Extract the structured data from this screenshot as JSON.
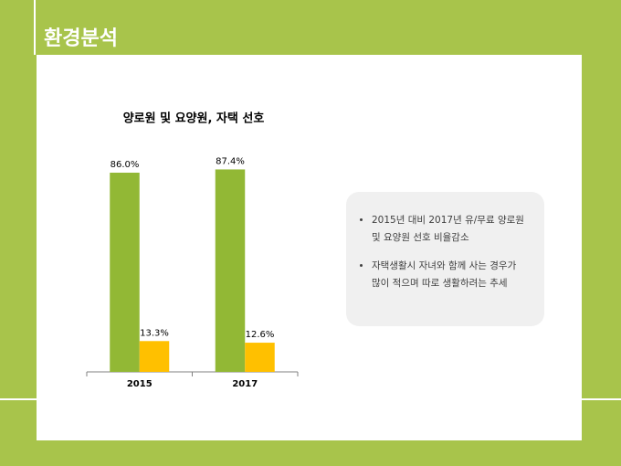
{
  "header": {
    "title": "환경분석"
  },
  "chart_data": {
    "type": "bar",
    "title": "양로원 및 요양원, 자택 선호",
    "categories": [
      "2015",
      "2017"
    ],
    "series": [
      {
        "color": "#92b835",
        "values": [
          86.0,
          87.4
        ],
        "value_labels": [
          "86.0%",
          "87.4%"
        ]
      },
      {
        "color": "#ffc000",
        "values": [
          13.3,
          12.6
        ],
        "value_labels": [
          "13.3%",
          "12.6%"
        ]
      }
    ],
    "ylim": [
      0,
      100
    ]
  },
  "notes": {
    "bullets": [
      "2015년 대비 2017년 유/무료 양로원 및 요양원 선호 비율감소",
      "자택생활시 자녀와 함께 사는 경우가 많이 적으며 따로 생활하려는 추세"
    ]
  }
}
